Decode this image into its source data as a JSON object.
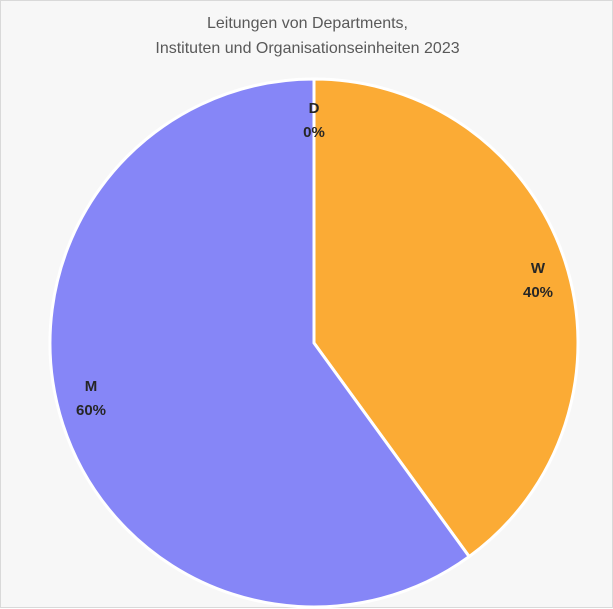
{
  "chart_data": {
    "type": "pie",
    "title_lines": [
      "Leitungen von Departments,",
      "Instituten und Organisationseinheiten 2023"
    ],
    "slices": [
      {
        "category": "D",
        "value": 0,
        "label": "0%",
        "color": "#9e9e9e"
      },
      {
        "category": "W",
        "value": 40,
        "label": "40%",
        "color": "#fbab35"
      },
      {
        "category": "M",
        "value": 60,
        "label": "60%",
        "color": "#8686f7"
      }
    ],
    "start_angle": "12 o'clock",
    "direction": "clockwise",
    "legend": "none",
    "background_color": "#f7f7f7"
  }
}
